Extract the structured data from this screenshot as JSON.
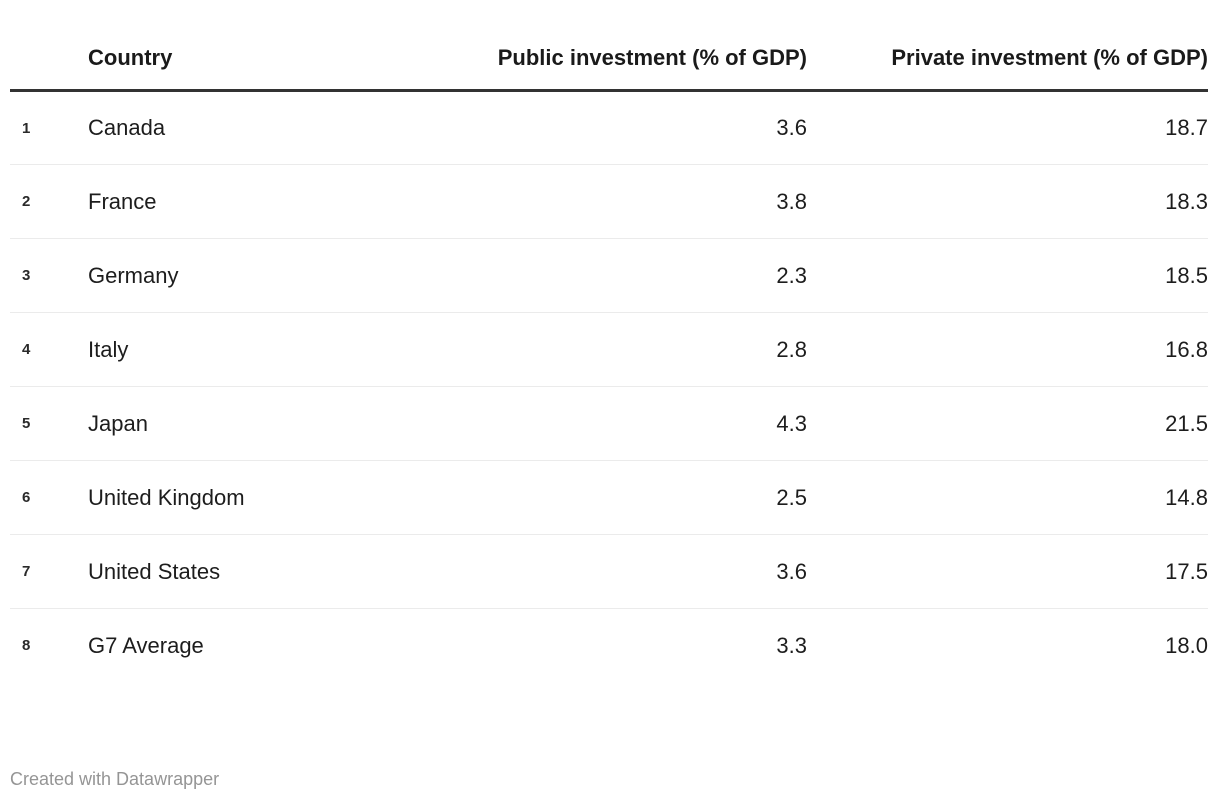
{
  "chart_data": {
    "type": "table",
    "columns": [
      "Country",
      "Public investment (% of GDP)",
      "Private investment (% of GDP)"
    ],
    "rows": [
      [
        "Canada",
        3.6,
        18.7
      ],
      [
        "France",
        3.8,
        18.3
      ],
      [
        "Germany",
        2.3,
        18.5
      ],
      [
        "Italy",
        2.8,
        16.8
      ],
      [
        "Japan",
        4.3,
        21.5
      ],
      [
        "United Kingdom",
        2.5,
        14.8
      ],
      [
        "United States",
        3.6,
        17.5
      ],
      [
        "G7 Average",
        3.3,
        18.0
      ]
    ],
    "title": "",
    "legend_position": "none",
    "grid": "row-separators"
  },
  "table": {
    "header": {
      "country": "Country",
      "public": "Public investment (% of GDP)",
      "private": "Private investment (% of GDP)"
    },
    "rows": [
      {
        "rank": "1",
        "country": "Canada",
        "public": "3.6",
        "private": "18.7"
      },
      {
        "rank": "2",
        "country": "France",
        "public": "3.8",
        "private": "18.3"
      },
      {
        "rank": "3",
        "country": "Germany",
        "public": "2.3",
        "private": "18.5"
      },
      {
        "rank": "4",
        "country": "Italy",
        "public": "2.8",
        "private": "16.8"
      },
      {
        "rank": "5",
        "country": "Japan",
        "public": "4.3",
        "private": "21.5"
      },
      {
        "rank": "6",
        "country": "United Kingdom",
        "public": "2.5",
        "private": "14.8"
      },
      {
        "rank": "7",
        "country": "United States",
        "public": "3.6",
        "private": "17.5"
      },
      {
        "rank": "8",
        "country": "G7 Average",
        "public": "3.3",
        "private": "18.0"
      }
    ]
  },
  "footer": {
    "credit": "Created with Datawrapper"
  },
  "colors": {
    "header_rule": "#333333",
    "row_separator": "#ebebeb",
    "text": "#1d1d1d",
    "credit_text": "#959595",
    "background": "#ffffff"
  }
}
